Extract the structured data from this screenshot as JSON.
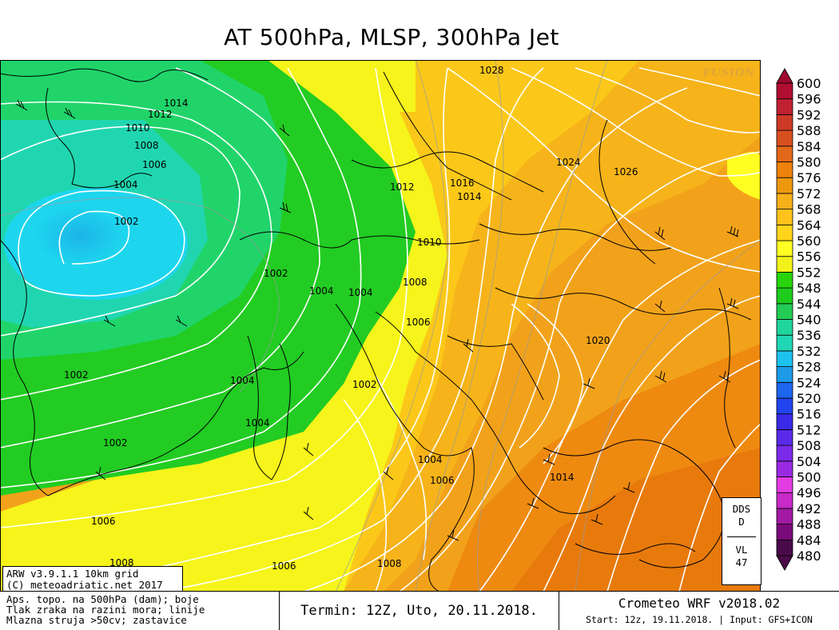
{
  "title": "AT 500hPa, MLSP, 300hPa Jet",
  "watermark": "FUSION",
  "legend": {
    "values": [
      "480",
      "484",
      "488",
      "492",
      "496",
      "500",
      "504",
      "508",
      "512",
      "516",
      "520",
      "524",
      "528",
      "532",
      "536",
      "540",
      "544",
      "548",
      "552",
      "556",
      "560",
      "564",
      "568",
      "572",
      "576",
      "580",
      "584",
      "588",
      "592",
      "596",
      "600"
    ],
    "colors": [
      "#4a0a4a",
      "#7a0a7a",
      "#a21aa2",
      "#c82ac8",
      "#e23ce2",
      "#9a2ae2",
      "#7a2ae8",
      "#5a2ae8",
      "#3a2ae8",
      "#2244ee",
      "#1d66ee",
      "#1d9ae8",
      "#1dc2ee",
      "#20d6b4",
      "#20d69a",
      "#22cc55",
      "#1dcc1d",
      "#28d40c",
      "#f2f21a",
      "#ffff22",
      "#ffd41a",
      "#ffc21a",
      "#f6b01a",
      "#ee9810",
      "#ee820c",
      "#e2681a",
      "#d85020",
      "#cc3a26",
      "#c02232",
      "#b00e32",
      "#a00a2e"
    ]
  },
  "isobar_labels": [
    {
      "text": "1028"
    },
    {
      "text": "1014"
    },
    {
      "text": "1012"
    },
    {
      "text": "1010"
    },
    {
      "text": "1008"
    },
    {
      "text": "1006"
    },
    {
      "text": "1004"
    },
    {
      "text": "1002"
    },
    {
      "text": "1024"
    },
    {
      "text": "1026"
    },
    {
      "text": "1016"
    },
    {
      "text": "1014"
    },
    {
      "text": "1012"
    },
    {
      "text": "1010"
    },
    {
      "text": "1002"
    },
    {
      "text": "1004"
    },
    {
      "text": "1004"
    },
    {
      "text": "1008"
    },
    {
      "text": "1006"
    },
    {
      "text": "1020"
    },
    {
      "text": "1002"
    },
    {
      "text": "1002"
    },
    {
      "text": "1004"
    },
    {
      "text": "1004"
    },
    {
      "text": "1002"
    },
    {
      "text": "1004"
    },
    {
      "text": "1006"
    },
    {
      "text": "1014"
    },
    {
      "text": "1006"
    },
    {
      "text": "1008"
    },
    {
      "text": "1006"
    },
    {
      "text": "1008"
    }
  ],
  "model_box": {
    "line1": "ARW v3.9.1.1 10km grid",
    "line2": "(C) meteoadriatic.net 2017"
  },
  "info_box": {
    "line1": "Aps. topo. na 500hPa (dam); boje",
    "line2": "Tlak zraka na razini mora; linije",
    "line3": "Mlazna struja >50cv; zastavice"
  },
  "term": "Termin: 12Z, Uto, 20.11.2018.",
  "crometeo": {
    "title": "Crometeo WRF v2018.02",
    "sub": "Start: 12z, 19.11.2018. | Input: GFS+ICON"
  },
  "dds": {
    "l1": "DDS",
    "l2": "D",
    "l3": "VL",
    "l4": "47"
  }
}
